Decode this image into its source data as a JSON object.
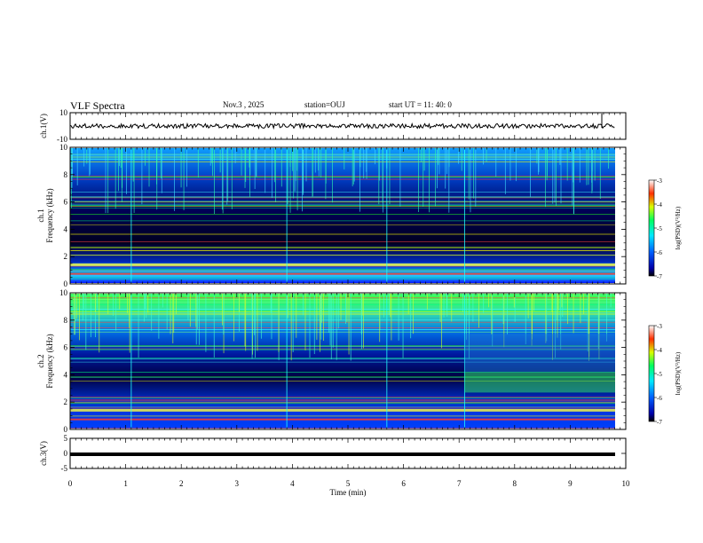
{
  "header": {
    "title": "VLF Spectra",
    "date": "Nov.3 , 2025",
    "station": "station=OUJ",
    "start": "start UT = 11: 40: 0"
  },
  "chart_data": [
    {
      "type": "line",
      "ylabel": "ch.1(V)",
      "ylim": [
        -10,
        10
      ],
      "y_ticks": [
        "10",
        "-10"
      ],
      "series": [
        {
          "x": [
            0,
            10
          ],
          "y": [
            0,
            0
          ]
        }
      ]
    },
    {
      "type": "heatmap",
      "ylabel": "ch.1 Frequency (kHz)",
      "ylim": [
        0,
        10
      ],
      "y_ticks": [
        "0",
        "2",
        "4",
        "6",
        "8",
        "10"
      ],
      "xlim": [
        0,
        10
      ],
      "colorbar": {
        "label": "log(PSD)(V²/Hz)",
        "range": [
          -7,
          -3
        ],
        "ticks": [
          "-3",
          "-4",
          "-5",
          "-6",
          "-7"
        ]
      }
    },
    {
      "type": "heatmap",
      "ylabel": "ch.2 Frequency (kHz)",
      "ylim": [
        0,
        10
      ],
      "y_ticks": [
        "0",
        "2",
        "4",
        "6",
        "8",
        "10"
      ],
      "xlim": [
        0,
        10
      ],
      "colorbar": {
        "label": "log(PSD)(V²/Hz)",
        "range": [
          -7,
          -3
        ],
        "ticks": [
          "-3",
          "-4",
          "-5",
          "-6",
          "-7"
        ]
      }
    },
    {
      "type": "line",
      "ylabel": "ch.3(V)",
      "ylim": [
        -5,
        5
      ],
      "y_ticks": [
        "5",
        "0",
        "-5"
      ],
      "series": [
        {
          "x": [
            0,
            10
          ],
          "y": [
            -0.3,
            -0.3
          ]
        }
      ]
    }
  ],
  "xaxis": {
    "label": "Time (min)",
    "range": [
      0,
      10
    ],
    "ticks": [
      "0",
      "1",
      "2",
      "3",
      "4",
      "5",
      "6",
      "7",
      "8",
      "9",
      "10"
    ]
  }
}
